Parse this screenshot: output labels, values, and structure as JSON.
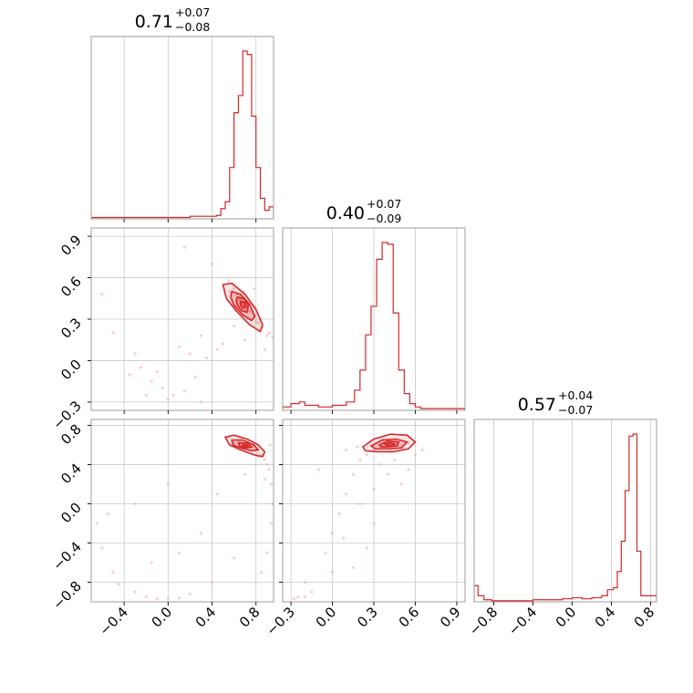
{
  "chart_data": {
    "type": "corner",
    "color": "#d62728",
    "parameters": [
      {
        "title": {
          "median": "0.71",
          "plus": "+0.07",
          "minus": "−0.08"
        },
        "range": [
          -0.7,
          0.96
        ],
        "ticks": [
          -0.4,
          0.0,
          0.4,
          0.8
        ],
        "tick_labels": [
          "−0.4",
          "0.0",
          "0.4",
          "0.8"
        ],
        "hist_edges": [
          -0.7,
          0.2,
          0.44,
          0.48,
          0.52,
          0.56,
          0.6,
          0.64,
          0.68,
          0.72,
          0.76,
          0.8,
          0.84,
          0.88,
          0.92,
          0.96
        ],
        "hist_counts": [
          0.008,
          0.015,
          0.02,
          0.06,
          0.1,
          0.3,
          0.62,
          0.72,
          0.98,
          0.96,
          0.6,
          0.3,
          0.12,
          0.05,
          0.07
        ]
      },
      {
        "title": {
          "median": "0.40",
          "plus": "+0.07",
          "minus": "−0.09"
        },
        "range": [
          -0.36,
          0.96
        ],
        "ticks": [
          -0.3,
          0.0,
          0.3,
          0.6,
          0.9
        ],
        "tick_labels": [
          "−0.3",
          "0.0",
          "0.3",
          "0.6",
          "0.9"
        ],
        "hist_edges": [
          -0.36,
          -0.3,
          -0.24,
          -0.2,
          -0.1,
          0.0,
          0.1,
          0.16,
          0.2,
          0.24,
          0.28,
          0.32,
          0.36,
          0.4,
          0.44,
          0.48,
          0.52,
          0.56,
          0.6,
          0.64,
          0.96
        ],
        "hist_counts": [
          0.02,
          0.04,
          0.05,
          0.03,
          0.02,
          0.03,
          0.05,
          0.12,
          0.24,
          0.45,
          0.62,
          0.9,
          1.0,
          0.99,
          0.58,
          0.24,
          0.1,
          0.04,
          0.02,
          0.01
        ]
      },
      {
        "title": {
          "median": "0.57",
          "plus": "+0.04",
          "minus": "−0.07"
        },
        "range": [
          -1.0,
          0.86
        ],
        "ticks": [
          -0.8,
          -0.4,
          0.0,
          0.4,
          0.8
        ],
        "tick_labels": [
          "−0.8",
          "−0.4",
          "0.0",
          "0.4",
          "0.8"
        ],
        "hist_edges": [
          -1.0,
          -0.96,
          -0.9,
          -0.82,
          -0.4,
          -0.1,
          0.0,
          0.1,
          0.2,
          0.3,
          0.36,
          0.42,
          0.46,
          0.5,
          0.54,
          0.58,
          0.62,
          0.66,
          0.7,
          0.86
        ],
        "hist_counts": [
          0.08,
          0.03,
          0.01,
          0.005,
          0.01,
          0.015,
          0.02,
          0.015,
          0.02,
          0.03,
          0.06,
          0.07,
          0.15,
          0.3,
          0.55,
          0.82,
          0.83,
          0.25,
          0.03
        ]
      }
    ],
    "pairs": [
      {
        "x": 0,
        "y": 1,
        "samples": [
          [
            0.65,
            0.45
          ],
          [
            0.72,
            0.38
          ],
          [
            0.78,
            0.33
          ],
          [
            0.6,
            0.52
          ],
          [
            0.68,
            0.42
          ],
          [
            0.74,
            0.36
          ],
          [
            0.82,
            0.27
          ],
          [
            0.56,
            0.5
          ],
          [
            0.63,
            0.48
          ],
          [
            0.7,
            0.4
          ],
          [
            0.76,
            0.35
          ],
          [
            0.8,
            0.28
          ],
          [
            0.86,
            0.24
          ],
          [
            0.9,
            0.18
          ],
          [
            0.55,
            0.58
          ],
          [
            0.66,
            0.47
          ],
          [
            0.73,
            0.31
          ],
          [
            0.79,
            0.39
          ],
          [
            0.62,
            0.36
          ],
          [
            0.69,
            0.5
          ],
          [
            0.84,
            0.3
          ],
          [
            0.58,
            0.44
          ],
          [
            0.92,
            0.2
          ],
          [
            0.95,
            0.17
          ],
          [
            -0.25,
            -0.05
          ],
          [
            -0.15,
            -0.15
          ],
          [
            -0.05,
            -0.2
          ],
          [
            0.05,
            -0.25
          ],
          [
            0.15,
            -0.22
          ],
          [
            0.25,
            -0.12
          ],
          [
            -0.3,
            0.05
          ],
          [
            -0.1,
            -0.08
          ],
          [
            0.1,
            0.1
          ],
          [
            0.2,
            0.05
          ],
          [
            0.35,
            0.02
          ],
          [
            0.45,
            0.08
          ],
          [
            -0.35,
            -0.1
          ],
          [
            -0.2,
            -0.25
          ],
          [
            0.0,
            -0.28
          ],
          [
            0.3,
            -0.3
          ],
          [
            0.5,
            0.12
          ],
          [
            0.6,
            0.25
          ],
          [
            0.7,
            0.15
          ],
          [
            -0.6,
            0.48
          ],
          [
            -0.5,
            0.2
          ],
          [
            0.15,
            0.82
          ],
          [
            0.4,
            0.7
          ],
          [
            0.78,
            0.52
          ],
          [
            0.88,
            0.08
          ],
          [
            0.3,
            0.18
          ]
        ],
        "contours": [
          [
            [
              0.5,
              0.55
            ],
            [
              0.58,
              0.56
            ],
            [
              0.7,
              0.48
            ],
            [
              0.8,
              0.37
            ],
            [
              0.86,
              0.26
            ],
            [
              0.84,
              0.21
            ],
            [
              0.74,
              0.26
            ],
            [
              0.62,
              0.36
            ],
            [
              0.53,
              0.45
            ],
            [
              0.5,
              0.55
            ]
          ],
          [
            [
              0.58,
              0.5
            ],
            [
              0.66,
              0.48
            ],
            [
              0.74,
              0.41
            ],
            [
              0.79,
              0.32
            ],
            [
              0.76,
              0.29
            ],
            [
              0.68,
              0.33
            ],
            [
              0.6,
              0.4
            ],
            [
              0.57,
              0.46
            ],
            [
              0.58,
              0.5
            ]
          ],
          [
            [
              0.63,
              0.46
            ],
            [
              0.69,
              0.45
            ],
            [
              0.73,
              0.4
            ],
            [
              0.72,
              0.35
            ],
            [
              0.67,
              0.36
            ],
            [
              0.63,
              0.4
            ],
            [
              0.62,
              0.44
            ],
            [
              0.63,
              0.46
            ]
          ],
          [
            [
              0.66,
              0.43
            ],
            [
              0.7,
              0.42
            ],
            [
              0.71,
              0.39
            ],
            [
              0.68,
              0.38
            ],
            [
              0.66,
              0.4
            ],
            [
              0.66,
              0.43
            ]
          ]
        ]
      },
      {
        "x": 0,
        "y": 2,
        "samples": [
          [
            0.6,
            0.62
          ],
          [
            0.65,
            0.64
          ],
          [
            0.7,
            0.6
          ],
          [
            0.75,
            0.58
          ],
          [
            0.8,
            0.55
          ],
          [
            0.85,
            0.5
          ],
          [
            0.88,
            0.45
          ],
          [
            0.92,
            0.35
          ],
          [
            0.94,
            0.2
          ],
          [
            0.95,
            0.0
          ],
          [
            0.94,
            -0.2
          ],
          [
            0.9,
            -0.5
          ],
          [
            0.85,
            -0.7
          ],
          [
            0.55,
            0.68
          ],
          [
            0.68,
            0.57
          ],
          [
            0.78,
            0.6
          ],
          [
            0.82,
            0.48
          ],
          [
            0.9,
            0.4
          ],
          [
            -0.2,
            -0.95
          ],
          [
            -0.1,
            -0.97
          ],
          [
            0.0,
            -0.97
          ],
          [
            0.1,
            -0.96
          ],
          [
            -0.3,
            -0.9
          ],
          [
            -0.45,
            -0.82
          ],
          [
            -0.5,
            -0.7
          ],
          [
            -0.6,
            -0.45
          ],
          [
            -0.65,
            -0.2
          ],
          [
            0.2,
            -0.92
          ],
          [
            0.4,
            -0.8
          ],
          [
            0.6,
            -0.55
          ],
          [
            -0.15,
            -0.6
          ],
          [
            0.1,
            -0.5
          ],
          [
            0.3,
            -0.3
          ],
          [
            -0.3,
            0.0
          ],
          [
            0.0,
            0.2
          ],
          [
            -0.55,
            -0.1
          ],
          [
            0.45,
            0.1
          ],
          [
            0.7,
            0.3
          ],
          [
            0.88,
            0.25
          ],
          [
            0.93,
            0.6
          ]
        ],
        "contours": [
          [
            [
              0.52,
              0.68
            ],
            [
              0.6,
              0.7
            ],
            [
              0.72,
              0.66
            ],
            [
              0.82,
              0.6
            ],
            [
              0.88,
              0.53
            ],
            [
              0.86,
              0.48
            ],
            [
              0.78,
              0.5
            ],
            [
              0.66,
              0.55
            ],
            [
              0.56,
              0.6
            ],
            [
              0.52,
              0.68
            ]
          ],
          [
            [
              0.58,
              0.65
            ],
            [
              0.68,
              0.65
            ],
            [
              0.78,
              0.6
            ],
            [
              0.82,
              0.55
            ],
            [
              0.76,
              0.54
            ],
            [
              0.66,
              0.57
            ],
            [
              0.59,
              0.6
            ],
            [
              0.58,
              0.65
            ]
          ],
          [
            [
              0.64,
              0.62
            ],
            [
              0.72,
              0.62
            ],
            [
              0.76,
              0.58
            ],
            [
              0.71,
              0.57
            ],
            [
              0.65,
              0.59
            ],
            [
              0.64,
              0.62
            ]
          ],
          [
            [
              0.68,
              0.6
            ],
            [
              0.72,
              0.6
            ],
            [
              0.73,
              0.58
            ],
            [
              0.69,
              0.58
            ],
            [
              0.68,
              0.6
            ]
          ]
        ]
      },
      {
        "x": 1,
        "y": 2,
        "samples": [
          [
            0.3,
            0.55
          ],
          [
            0.35,
            0.6
          ],
          [
            0.4,
            0.62
          ],
          [
            0.45,
            0.6
          ],
          [
            0.5,
            0.57
          ],
          [
            0.55,
            0.62
          ],
          [
            0.25,
            0.5
          ],
          [
            0.6,
            0.5
          ],
          [
            0.2,
            0.45
          ],
          [
            0.15,
            0.3
          ],
          [
            0.1,
            0.1
          ],
          [
            0.05,
            -0.1
          ],
          [
            0.0,
            -0.3
          ],
          [
            -0.05,
            -0.5
          ],
          [
            0.2,
            0.0
          ],
          [
            0.3,
            -0.2
          ],
          [
            0.25,
            -0.45
          ],
          [
            0.4,
            0.3
          ],
          [
            0.5,
            0.2
          ],
          [
            0.1,
            0.55
          ],
          [
            -0.1,
            0.35
          ],
          [
            -0.2,
            -0.8
          ],
          [
            -0.25,
            -0.95
          ],
          [
            -0.2,
            -0.95
          ],
          [
            -0.28,
            -0.97
          ],
          [
            -0.15,
            -0.9
          ],
          [
            0.0,
            -0.7
          ],
          [
            0.15,
            -0.65
          ],
          [
            0.3,
            0.15
          ],
          [
            0.45,
            0.45
          ],
          [
            0.55,
            0.35
          ],
          [
            0.65,
            0.55
          ],
          [
            0.35,
            0.4
          ],
          [
            0.18,
            0.58
          ],
          [
            0.08,
            -0.35
          ]
        ],
        "contours": [
          [
            [
              0.22,
              0.58
            ],
            [
              0.3,
              0.66
            ],
            [
              0.42,
              0.71
            ],
            [
              0.54,
              0.7
            ],
            [
              0.6,
              0.63
            ],
            [
              0.55,
              0.56
            ],
            [
              0.44,
              0.53
            ],
            [
              0.32,
              0.53
            ],
            [
              0.24,
              0.54
            ],
            [
              0.22,
              0.58
            ]
          ],
          [
            [
              0.28,
              0.59
            ],
            [
              0.36,
              0.65
            ],
            [
              0.46,
              0.66
            ],
            [
              0.54,
              0.63
            ],
            [
              0.5,
              0.57
            ],
            [
              0.4,
              0.56
            ],
            [
              0.31,
              0.56
            ],
            [
              0.28,
              0.59
            ]
          ],
          [
            [
              0.34,
              0.6
            ],
            [
              0.4,
              0.64
            ],
            [
              0.48,
              0.63
            ],
            [
              0.47,
              0.59
            ],
            [
              0.4,
              0.58
            ],
            [
              0.35,
              0.58
            ],
            [
              0.34,
              0.6
            ]
          ],
          [
            [
              0.38,
              0.61
            ],
            [
              0.42,
              0.62
            ],
            [
              0.45,
              0.61
            ],
            [
              0.42,
              0.59
            ],
            [
              0.39,
              0.6
            ],
            [
              0.38,
              0.61
            ]
          ]
        ]
      }
    ]
  }
}
